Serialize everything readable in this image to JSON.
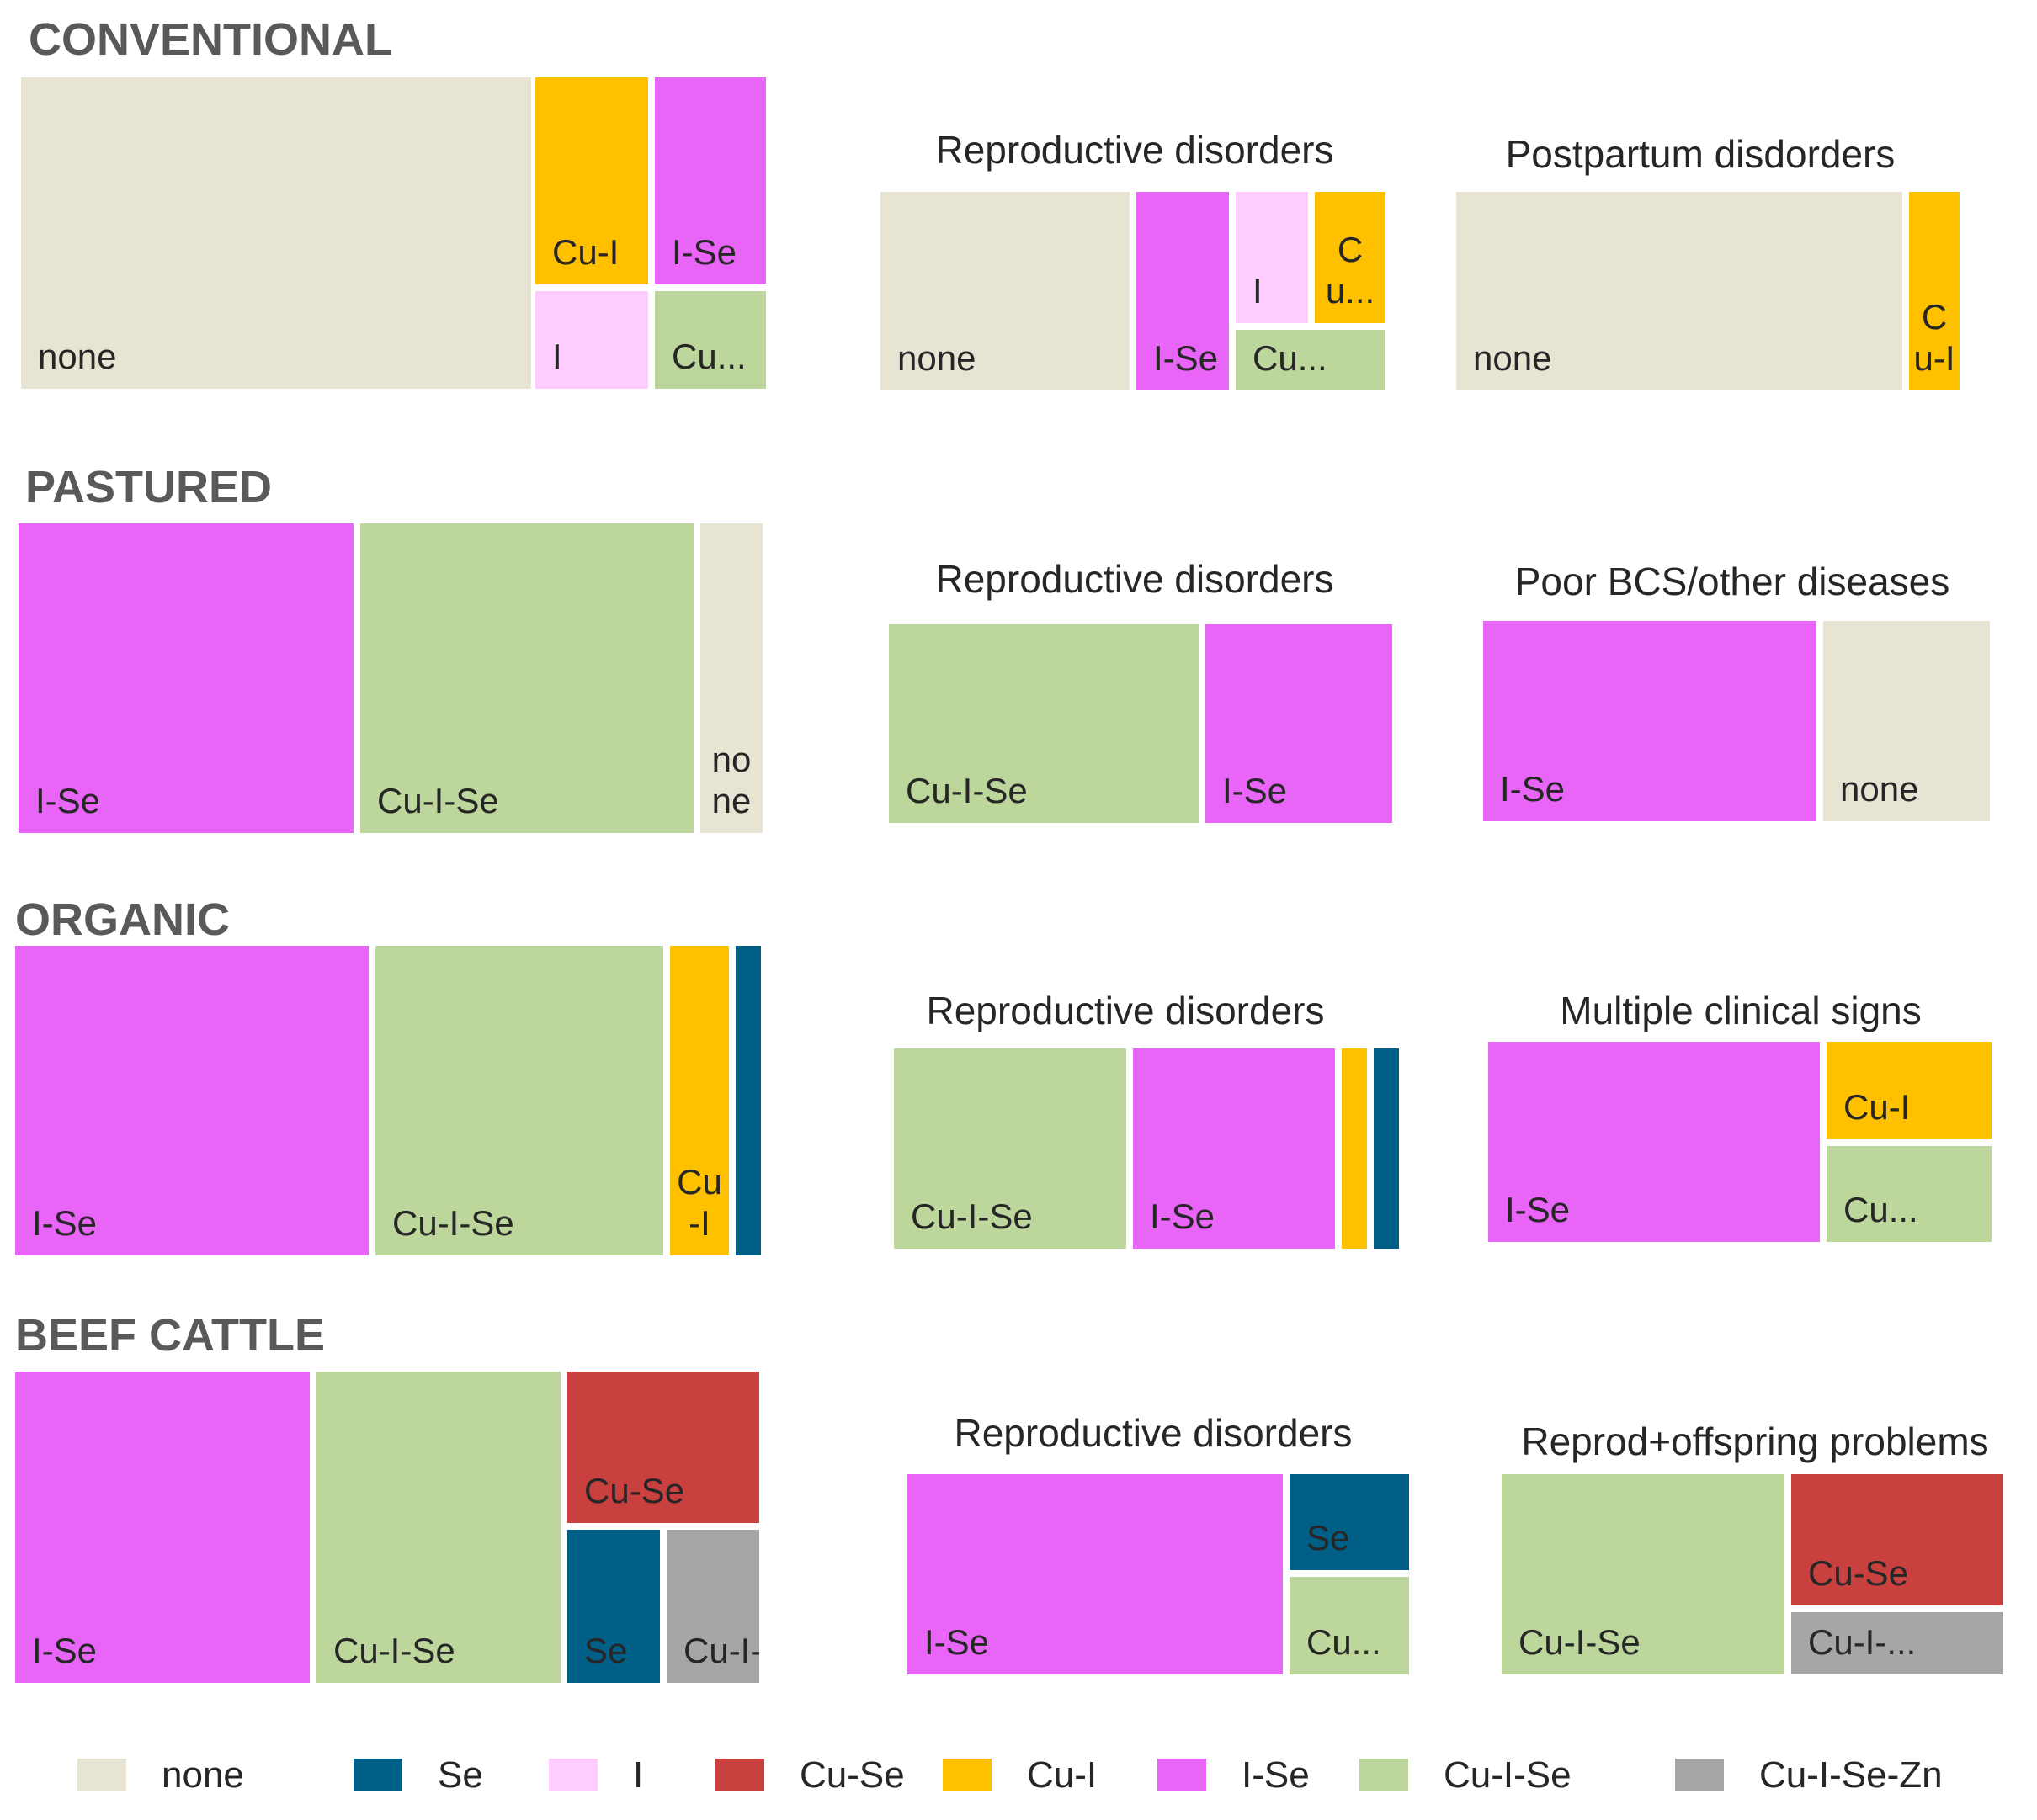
{
  "colors": {
    "none": "#E8E4D4",
    "Se": "#005F87",
    "I": "#FFCCFF",
    "Cu-Se": "#C8413F",
    "Cu-I": "#FFC000",
    "I-Se": "#E865F7",
    "Cu-I-Se": "#BCD69C",
    "Cu-I-Se-Zn": "#A6A6A6"
  },
  "chart_data": [
    {
      "type": "treemap",
      "group": "CONVENTIONAL",
      "title": "CONVENTIONAL",
      "cells": [
        {
          "key": "none",
          "label": "none"
        },
        {
          "key": "Cu-I",
          "label": "Cu-I"
        },
        {
          "key": "I-Se",
          "label": "I-Se"
        },
        {
          "key": "I",
          "label": "I"
        },
        {
          "key": "Cu-I-Se",
          "label": "Cu..."
        }
      ]
    },
    {
      "type": "treemap",
      "group": "CONVENTIONAL",
      "title": "Reproductive disorders",
      "cells": [
        {
          "key": "none",
          "label": "none"
        },
        {
          "key": "I-Se",
          "label": "I-Se"
        },
        {
          "key": "I",
          "label": "I"
        },
        {
          "key": "Cu-I",
          "label": "Cu..."
        },
        {
          "key": "Cu-I-Se",
          "label": "Cu..."
        }
      ]
    },
    {
      "type": "treemap",
      "group": "CONVENTIONAL",
      "title": "Postpartum disdorders",
      "cells": [
        {
          "key": "none",
          "label": "none"
        },
        {
          "key": "Cu-I",
          "label": "Cu-I"
        }
      ]
    },
    {
      "type": "treemap",
      "group": "PASTURED",
      "title": "PASTURED",
      "cells": [
        {
          "key": "I-Se",
          "label": "I-Se"
        },
        {
          "key": "Cu-I-Se",
          "label": "Cu-I-Se"
        },
        {
          "key": "none",
          "label": "none"
        }
      ]
    },
    {
      "type": "treemap",
      "group": "PASTURED",
      "title": "Reproductive disorders",
      "cells": [
        {
          "key": "Cu-I-Se",
          "label": "Cu-I-Se"
        },
        {
          "key": "I-Se",
          "label": "I-Se"
        }
      ]
    },
    {
      "type": "treemap",
      "group": "PASTURED",
      "title": "Poor BCS/other diseases",
      "cells": [
        {
          "key": "I-Se",
          "label": "I-Se"
        },
        {
          "key": "none",
          "label": "none"
        }
      ]
    },
    {
      "type": "treemap",
      "group": "ORGANIC",
      "title": "ORGANIC",
      "cells": [
        {
          "key": "I-Se",
          "label": "I-Se"
        },
        {
          "key": "Cu-I-Se",
          "label": "Cu-I-Se"
        },
        {
          "key": "Cu-I",
          "label": "Cu-I"
        },
        {
          "key": "Se",
          "label": ""
        }
      ]
    },
    {
      "type": "treemap",
      "group": "ORGANIC",
      "title": "Reproductive disorders",
      "cells": [
        {
          "key": "Cu-I-Se",
          "label": "Cu-I-Se"
        },
        {
          "key": "I-Se",
          "label": "I-Se"
        },
        {
          "key": "Cu-I",
          "label": ""
        },
        {
          "key": "Se",
          "label": ""
        }
      ]
    },
    {
      "type": "treemap",
      "group": "ORGANIC",
      "title": "Multiple clinical signs",
      "cells": [
        {
          "key": "I-Se",
          "label": "I-Se"
        },
        {
          "key": "Cu-I",
          "label": "Cu-I"
        },
        {
          "key": "Cu-I-Se",
          "label": "Cu..."
        }
      ]
    },
    {
      "type": "treemap",
      "group": "BEEF CATTLE",
      "title": "BEEF CATTLE",
      "cells": [
        {
          "key": "I-Se",
          "label": "I-Se"
        },
        {
          "key": "Cu-I-Se",
          "label": "Cu-I-Se"
        },
        {
          "key": "Cu-Se",
          "label": "Cu-Se"
        },
        {
          "key": "Se",
          "label": "Se"
        },
        {
          "key": "Cu-I-Se-Zn",
          "label": "Cu-I-..."
        }
      ]
    },
    {
      "type": "treemap",
      "group": "BEEF CATTLE",
      "title": "Reproductive disorders",
      "cells": [
        {
          "key": "I-Se",
          "label": "I-Se"
        },
        {
          "key": "Se",
          "label": "Se"
        },
        {
          "key": "Cu-I-Se",
          "label": "Cu..."
        }
      ]
    },
    {
      "type": "treemap",
      "group": "BEEF CATTLE",
      "title": "Reprod+offspring problems",
      "cells": [
        {
          "key": "Cu-I-Se",
          "label": "Cu-I-Se"
        },
        {
          "key": "Cu-Se",
          "label": "Cu-Se"
        },
        {
          "key": "Cu-I-Se-Zn",
          "label": "Cu-I-..."
        }
      ]
    }
  ],
  "legend": [
    {
      "key": "none",
      "label": "none"
    },
    {
      "key": "Se",
      "label": "Se"
    },
    {
      "key": "I",
      "label": "I"
    },
    {
      "key": "Cu-Se",
      "label": "Cu-Se"
    },
    {
      "key": "Cu-I",
      "label": "Cu-I"
    },
    {
      "key": "I-Se",
      "label": "I-Se"
    },
    {
      "key": "Cu-I-Se",
      "label": "Cu-I-Se"
    },
    {
      "key": "Cu-I-Se-Zn",
      "label": "Cu-I-Se-Zn"
    }
  ]
}
